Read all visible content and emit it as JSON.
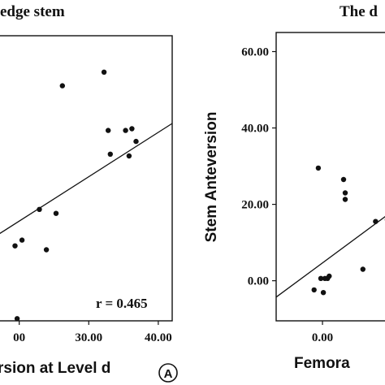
{
  "panel_a": {
    "title": "edge stem",
    "xlabel": "rsion at Level d",
    "r_label": "r = 0.465",
    "badge": "A"
  },
  "panel_b": {
    "title": "The d",
    "ylabel": "Stem Anteversion",
    "xlabel": "Femora"
  },
  "chart_data": [
    {
      "type": "scatter",
      "title": "edge stem",
      "xlabel": "rsion at Level d",
      "ylabel": "",
      "xlim": [
        17,
        42
      ],
      "ylim": [
        -5,
        60
      ],
      "x_ticks": [
        "00",
        "30.00",
        "40.00"
      ],
      "x_tick_values": [
        20,
        30,
        40
      ],
      "annotation": "r = 0.465",
      "grid": false,
      "points": [
        {
          "x": 26.2,
          "y": 48.6
        },
        {
          "x": 32.2,
          "y": 51.7
        },
        {
          "x": 32.8,
          "y": 38.4
        },
        {
          "x": 35.3,
          "y": 38.4
        },
        {
          "x": 36.2,
          "y": 38.8
        },
        {
          "x": 36.8,
          "y": 35.9
        },
        {
          "x": 33.1,
          "y": 33.0
        },
        {
          "x": 35.8,
          "y": 32.6
        },
        {
          "x": 22.9,
          "y": 20.4
        },
        {
          "x": 25.3,
          "y": 19.5
        },
        {
          "x": 20.4,
          "y": 13.4
        },
        {
          "x": 19.4,
          "y": 12.1
        },
        {
          "x": 23.9,
          "y": 11.2
        },
        {
          "x": 19.7,
          "y": -4.5
        }
      ],
      "trendline": [
        {
          "x": 17,
          "y": 14.7
        },
        {
          "x": 42,
          "y": 40.0
        }
      ]
    },
    {
      "type": "scatter",
      "title": "The d",
      "xlabel": "Femora",
      "ylabel": "Stem Anteversion",
      "xlim": [
        -5.5,
        8
      ],
      "ylim": [
        -10.5,
        65
      ],
      "y_ticks": [
        "60.00",
        "40.00",
        "20.00",
        "0.00"
      ],
      "y_tick_values": [
        60,
        40,
        20,
        0
      ],
      "x_ticks": [
        "0.00"
      ],
      "x_tick_values": [
        0
      ],
      "grid": false,
      "points": [
        {
          "x": -0.5,
          "y": 29.5
        },
        {
          "x": 2.5,
          "y": 26.5
        },
        {
          "x": 2.7,
          "y": 23.0
        },
        {
          "x": 2.7,
          "y": 21.3
        },
        {
          "x": 6.3,
          "y": 15.5
        },
        {
          "x": 7.7,
          "y": 16.0
        },
        {
          "x": 4.8,
          "y": 3.0
        },
        {
          "x": -0.2,
          "y": 0.6
        },
        {
          "x": 0.3,
          "y": 0.6
        },
        {
          "x": 0.6,
          "y": 0.6
        },
        {
          "x": 0.8,
          "y": 1.2
        },
        {
          "x": -1.0,
          "y": -2.4
        },
        {
          "x": 0.1,
          "y": -3.1
        }
      ],
      "trendline": [
        {
          "x": -5.5,
          "y": -4.3
        },
        {
          "x": 8,
          "y": 17.7
        }
      ]
    }
  ]
}
